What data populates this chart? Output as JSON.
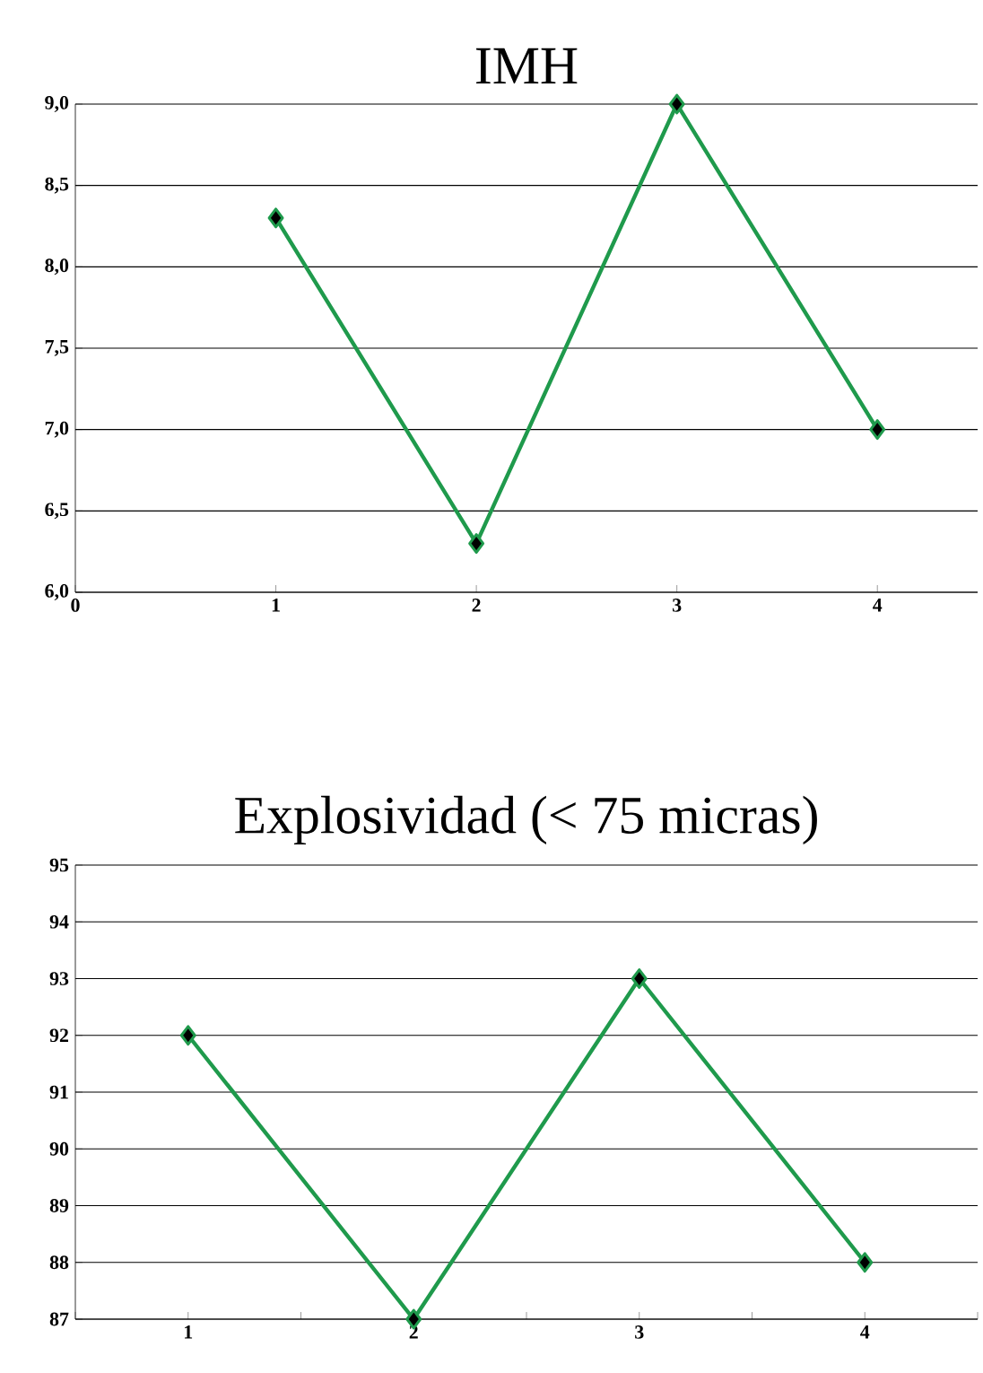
{
  "chart_data": [
    {
      "type": "line",
      "title": "IMH",
      "x": [
        1,
        2,
        3,
        4
      ],
      "series": [
        {
          "color": "#1f9a4c",
          "values": [
            8.3,
            6.3,
            9.0,
            7.0
          ]
        }
      ],
      "xlim": [
        0,
        4.5
      ],
      "xticks": [
        0,
        1,
        2,
        3,
        4
      ],
      "ylim": [
        6,
        9
      ],
      "yticks": [
        {
          "value": 6,
          "label": "6,0"
        },
        {
          "value": 6.5,
          "label": "6,5"
        },
        {
          "value": 7,
          "label": "7,0"
        },
        {
          "value": 7.5,
          "label": "7,5"
        },
        {
          "value": 8,
          "label": "8,0"
        },
        {
          "value": 8.5,
          "label": "8,5"
        },
        {
          "value": 9,
          "label": "9,0"
        }
      ],
      "grid": "y",
      "marker": "diamond",
      "line_style": "solid"
    },
    {
      "type": "line",
      "title": "Explosividad (< 75 micras)",
      "categories": [
        "1",
        "2",
        "3",
        "4"
      ],
      "series": [
        {
          "color": "#1f9a4c",
          "values": [
            92,
            87,
            93,
            88
          ]
        }
      ],
      "ylim": [
        87,
        95
      ],
      "yticks": [
        87,
        88,
        89,
        90,
        91,
        92,
        93,
        94,
        95
      ],
      "grid": "y",
      "marker": "diamond",
      "line_style": "solid"
    }
  ]
}
